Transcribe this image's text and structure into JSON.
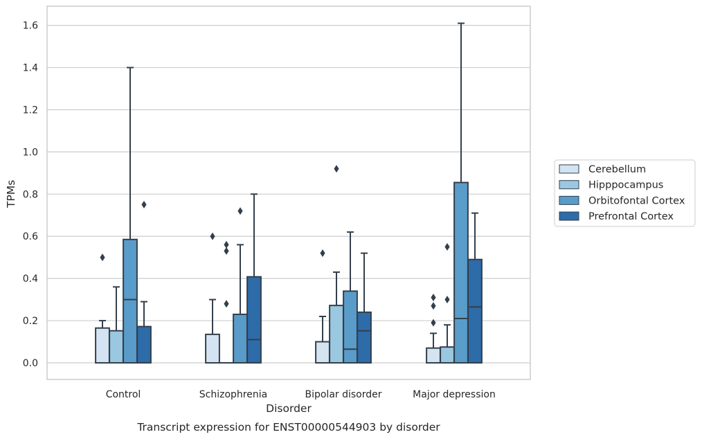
{
  "chart_data": {
    "type": "box",
    "title": "",
    "caption": "Transcript expression for ENST00000544903 by disorder",
    "xlabel": "Disorder",
    "ylabel": "TPMs",
    "ylim": [
      -0.08,
      1.69
    ],
    "yticks": [
      0.0,
      0.2,
      0.4,
      0.6,
      0.8,
      1.0,
      1.2,
      1.4,
      1.6
    ],
    "ytick_labels": [
      "0.0",
      "0.2",
      "0.4",
      "0.6",
      "0.8",
      "1.0",
      "1.2",
      "1.4",
      "1.6"
    ],
    "grid": true,
    "legend_placement": "right",
    "categories": [
      "Control",
      "Schizophrenia",
      "Bipolar disorder",
      "Major depression"
    ],
    "series": [
      {
        "name": "Cerebellum",
        "color": "#d3e3f1",
        "boxes": [
          {
            "q1": 0.0,
            "median": 0.0,
            "q3": 0.165,
            "whisker_low": 0.0,
            "whisker_high": 0.2,
            "outliers": [
              0.5
            ]
          },
          {
            "q1": 0.0,
            "median": 0.0,
            "q3": 0.135,
            "whisker_low": 0.0,
            "whisker_high": 0.3,
            "outliers": [
              0.6
            ]
          },
          {
            "q1": 0.0,
            "median": 0.0,
            "q3": 0.1,
            "whisker_low": 0.0,
            "whisker_high": 0.22,
            "outliers": [
              0.52
            ]
          },
          {
            "q1": 0.0,
            "median": 0.0,
            "q3": 0.07,
            "whisker_low": 0.0,
            "whisker_high": 0.14,
            "outliers": [
              0.19,
              0.27,
              0.31
            ]
          }
        ]
      },
      {
        "name": "Hipppocampus",
        "color": "#9ac8e0",
        "boxes": [
          {
            "q1": 0.0,
            "median": 0.0,
            "q3": 0.152,
            "whisker_low": 0.0,
            "whisker_high": 0.36,
            "outliers": []
          },
          {
            "q1": 0.0,
            "median": 0.0,
            "q3": 0.0,
            "whisker_low": 0.0,
            "whisker_high": 0.0,
            "outliers": [
              0.28,
              0.53,
              0.56
            ]
          },
          {
            "q1": 0.0,
            "median": 0.0,
            "q3": 0.272,
            "whisker_low": 0.0,
            "whisker_high": 0.43,
            "outliers": [
              0.92
            ]
          },
          {
            "q1": 0.0,
            "median": 0.0,
            "q3": 0.075,
            "whisker_low": 0.0,
            "whisker_high": 0.18,
            "outliers": [
              0.3,
              0.55
            ]
          }
        ]
      },
      {
        "name": "Orbitofontal Cortex",
        "color": "#5a9cc9",
        "boxes": [
          {
            "q1": 0.0,
            "median": 0.3,
            "q3": 0.585,
            "whisker_low": 0.0,
            "whisker_high": 1.4,
            "outliers": []
          },
          {
            "q1": 0.0,
            "median": 0.0,
            "q3": 0.23,
            "whisker_low": 0.0,
            "whisker_high": 0.56,
            "outliers": [
              0.72
            ]
          },
          {
            "q1": 0.0,
            "median": 0.065,
            "q3": 0.34,
            "whisker_low": 0.0,
            "whisker_high": 0.62,
            "outliers": []
          },
          {
            "q1": 0.0,
            "median": 0.21,
            "q3": 0.855,
            "whisker_low": 0.0,
            "whisker_high": 1.61,
            "outliers": []
          }
        ]
      },
      {
        "name": "Prefrontal Cortex",
        "color": "#2d6ca8",
        "boxes": [
          {
            "q1": 0.0,
            "median": 0.0,
            "q3": 0.172,
            "whisker_low": 0.0,
            "whisker_high": 0.29,
            "outliers": [
              0.75
            ]
          },
          {
            "q1": 0.0,
            "median": 0.11,
            "q3": 0.408,
            "whisker_low": 0.0,
            "whisker_high": 0.8,
            "outliers": []
          },
          {
            "q1": 0.0,
            "median": 0.152,
            "q3": 0.24,
            "whisker_low": 0.0,
            "whisker_high": 0.52,
            "outliers": []
          },
          {
            "q1": 0.0,
            "median": 0.265,
            "q3": 0.49,
            "whisker_low": 0.0,
            "whisker_high": 0.71,
            "outliers": []
          }
        ]
      }
    ]
  }
}
